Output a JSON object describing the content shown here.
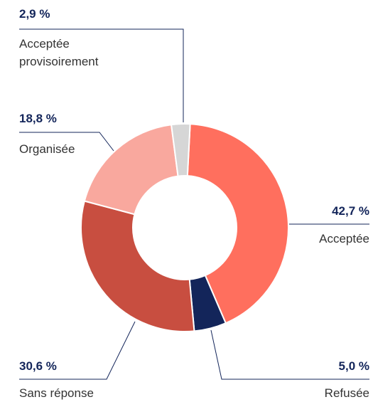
{
  "chart_data": {
    "type": "donut",
    "categories": [
      "Acceptée",
      "Refusée",
      "Sans réponse",
      "Organisée",
      "Acceptée provisoirement"
    ],
    "values": [
      42.7,
      5.0,
      30.6,
      18.8,
      2.9
    ],
    "value_labels": [
      "42,7 %",
      "5,0 %",
      "30,6 %",
      "18,8 %",
      "2,9 %"
    ],
    "colors": [
      "#ff6f5e",
      "#13255a",
      "#c84e40",
      "#f9a89e",
      "#d6d6d6"
    ]
  }
}
